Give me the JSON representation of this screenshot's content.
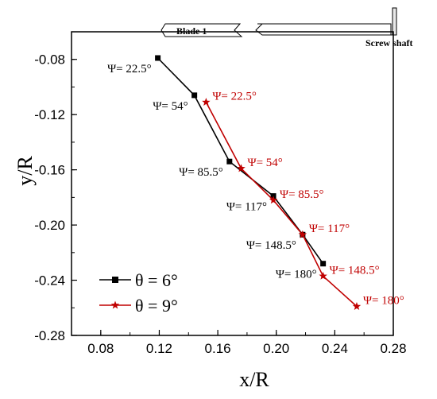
{
  "chart_data": {
    "type": "line",
    "xlabel": "x/R",
    "ylabel": "y/R",
    "xlim": [
      0.06,
      0.28
    ],
    "ylim": [
      -0.28,
      -0.06
    ],
    "xticks": [
      "0.08",
      "0.12",
      "0.16",
      "0.20",
      "0.24",
      "0.28"
    ],
    "xtick_values": [
      0.08,
      0.12,
      0.16,
      0.2,
      0.24,
      0.28
    ],
    "yticks": [
      "-0.08",
      "-0.12",
      "-0.16",
      "-0.20",
      "-0.24",
      "-0.28"
    ],
    "ytick_values": [
      -0.08,
      -0.12,
      -0.16,
      -0.2,
      -0.24,
      -0.28
    ],
    "legend_position": "bottom-left",
    "series": [
      {
        "name": "θ = 6°",
        "color": "#000000",
        "marker": "square",
        "x": [
          0.119,
          0.144,
          0.168,
          0.198,
          0.218,
          0.232
        ],
        "y": [
          -0.079,
          -0.106,
          -0.154,
          -0.179,
          -0.207,
          -0.228
        ],
        "labels": [
          "Ψ= 22.5°",
          "Ψ= 54°",
          "Ψ= 85.5°",
          "Ψ= 117°",
          "Ψ= 148.5°",
          "Ψ= 180°"
        ]
      },
      {
        "name": "θ = 9°",
        "color": "#c00000",
        "marker": "star",
        "x": [
          0.152,
          0.176,
          0.198,
          0.218,
          0.232,
          0.255
        ],
        "y": [
          -0.111,
          -0.159,
          -0.182,
          -0.207,
          -0.237,
          -0.259
        ],
        "labels": [
          "Ψ= 22.5°",
          "Ψ= 54°",
          "Ψ= 85.5°",
          "Ψ= 117°",
          "Ψ= 148.5°",
          "Ψ= 180°"
        ]
      }
    ]
  },
  "inset": {
    "blade_label": "Blade 1",
    "shaft_label": "Screw shaft"
  }
}
